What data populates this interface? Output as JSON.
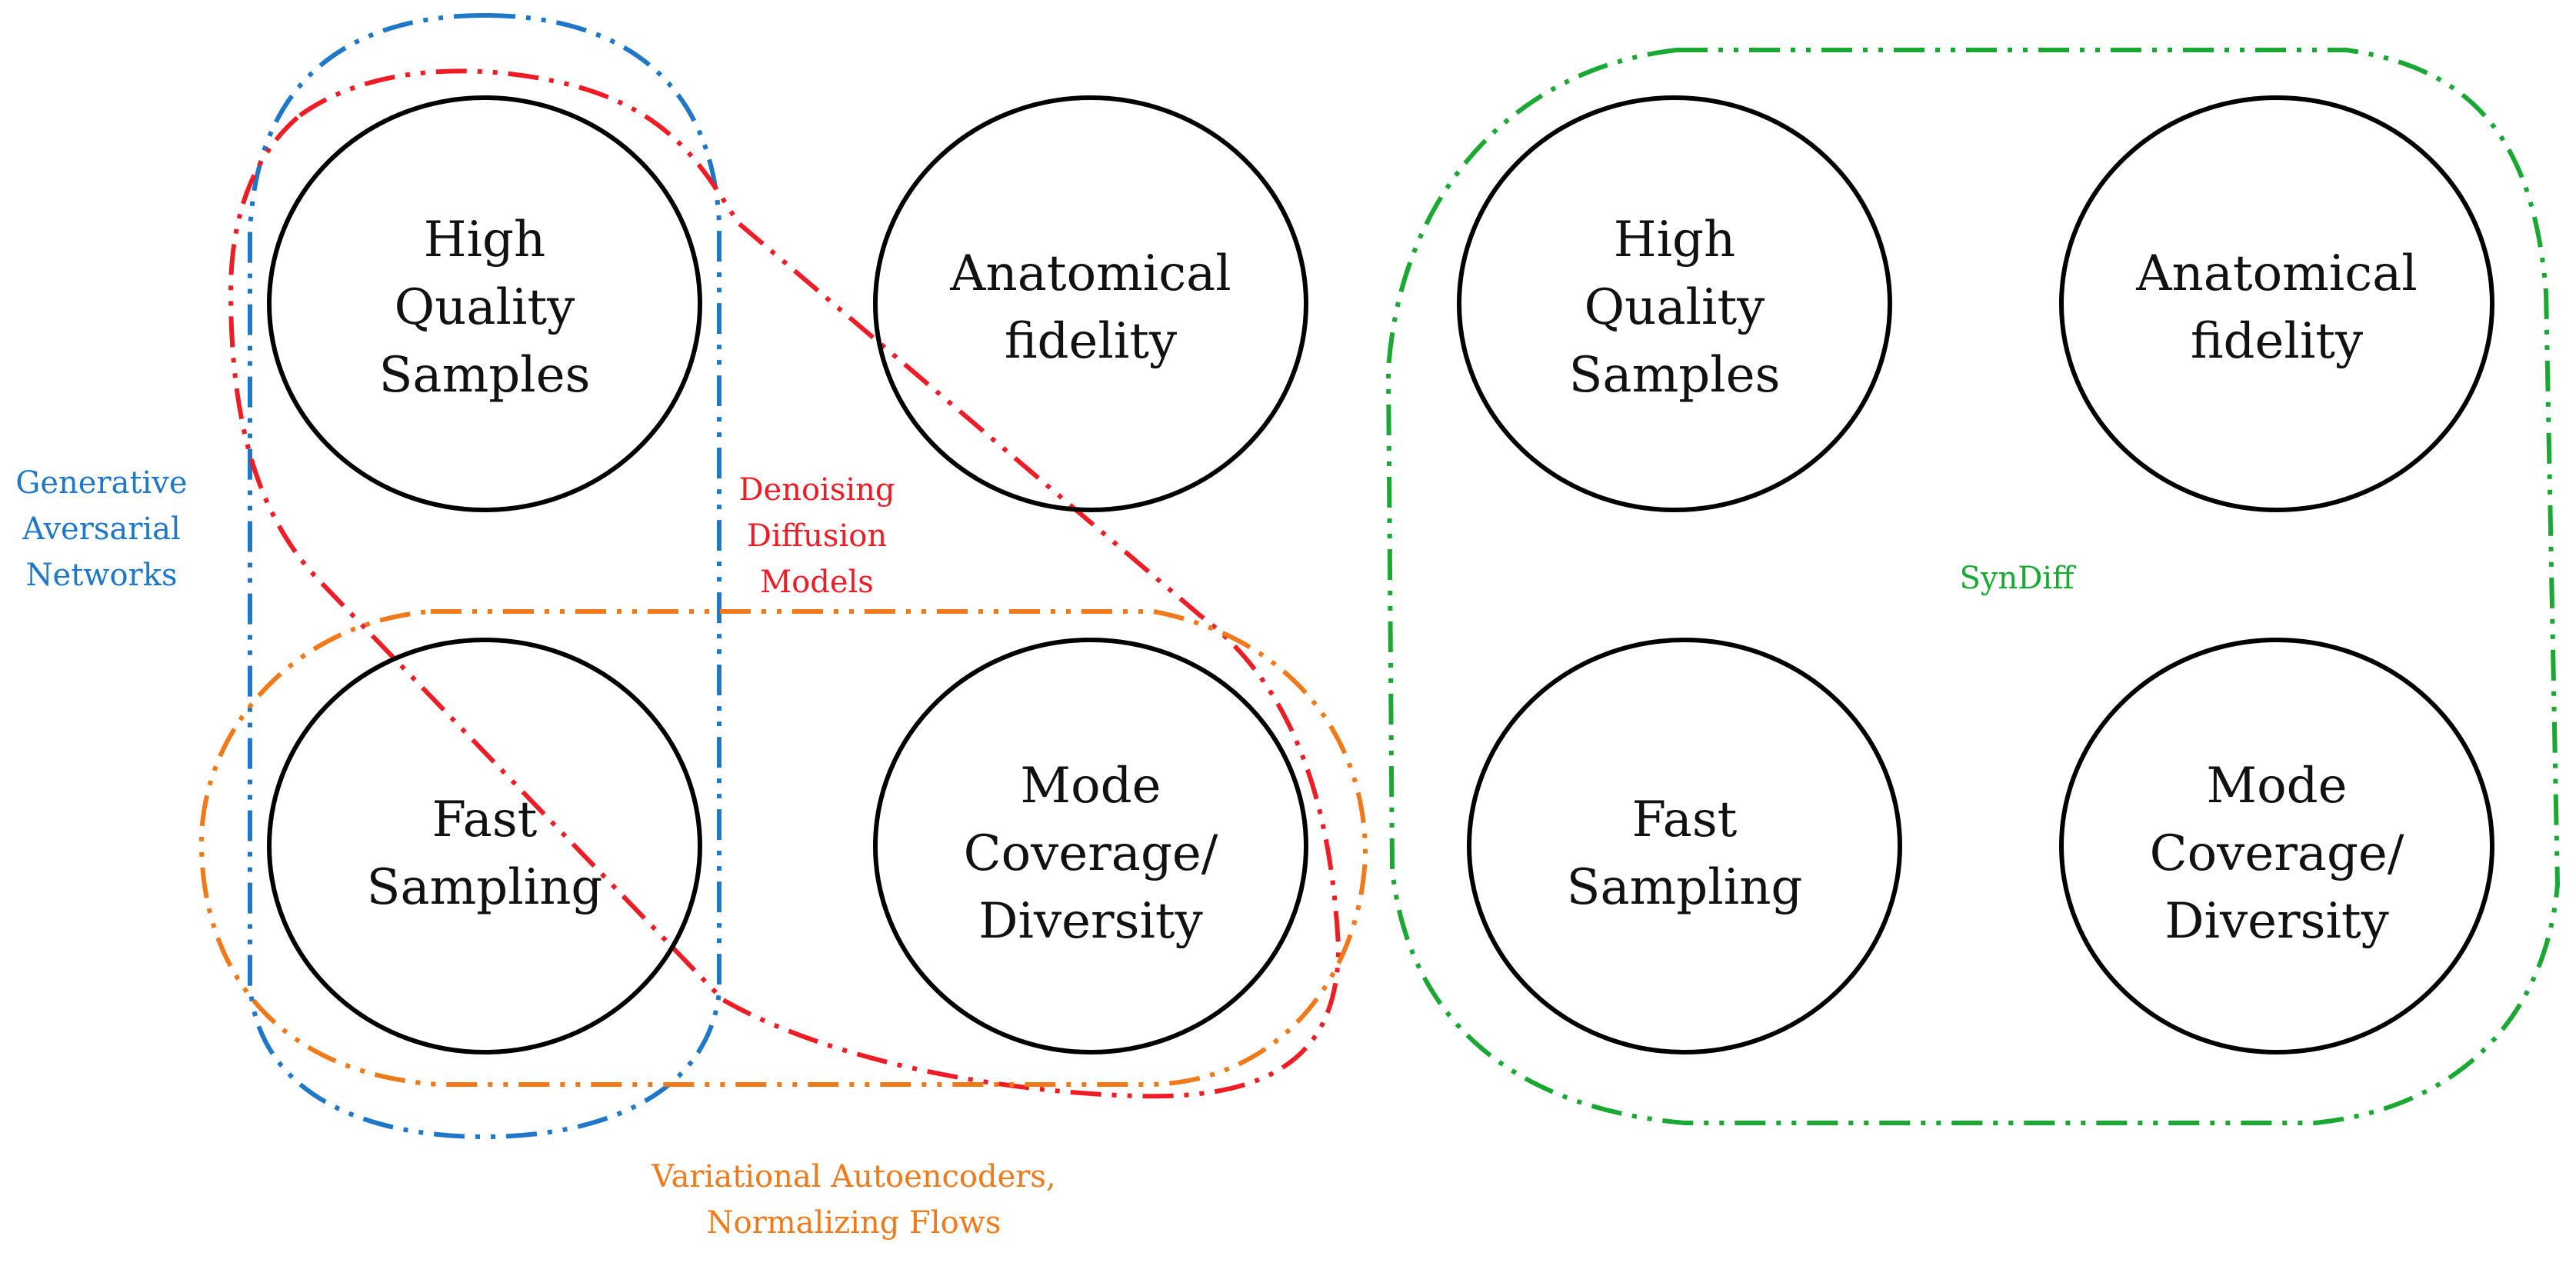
{
  "colors": {
    "gan": "#1f77c8",
    "ddm": "#ee1c25",
    "vae": "#f07a1a",
    "syndiff": "#19a832",
    "circle": "#000000"
  },
  "left_panel": {
    "high_quality": [
      "High",
      "Quality",
      "Samples"
    ],
    "anatomical": [
      "Anatomical",
      "fidelity"
    ],
    "fast_sampling": [
      "Fast",
      "Sampling"
    ],
    "mode_coverage": [
      "Mode",
      "Coverage/",
      "Diversity"
    ]
  },
  "right_panel": {
    "high_quality": [
      "High",
      "Quality",
      "Samples"
    ],
    "anatomical": [
      "Anatomical",
      "fidelity"
    ],
    "fast_sampling": [
      "Fast",
      "Sampling"
    ],
    "mode_coverage": [
      "Mode",
      "Coverage/",
      "Diversity"
    ]
  },
  "groups": {
    "gan": [
      "Generative",
      "Aversarial",
      "Networks"
    ],
    "ddm": [
      "Denoising",
      "Diffusion",
      "Models"
    ],
    "vae": [
      "Variational Autoencoders,",
      "Normalizing Flows"
    ],
    "syndiff": [
      "SynDiff"
    ]
  }
}
